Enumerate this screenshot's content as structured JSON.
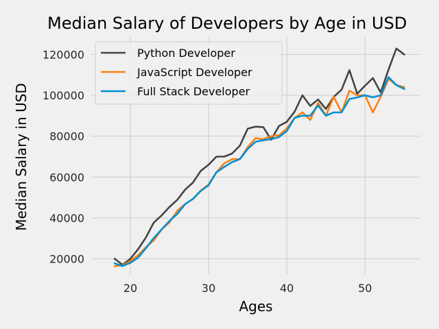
{
  "chart_data": {
    "type": "line",
    "title": "Median Salary of Developers by Age in USD",
    "xlabel": "Ages",
    "ylabel": "Median Salary in USD",
    "xlim": [
      15,
      57
    ],
    "ylim": [
      12500,
      128500
    ],
    "xticks": [
      20,
      30,
      40,
      50
    ],
    "yticks": [
      20000,
      40000,
      60000,
      80000,
      100000,
      120000
    ],
    "grid": true,
    "legend_position": "top-left",
    "x": [
      18,
      19,
      20,
      21,
      22,
      23,
      24,
      25,
      26,
      27,
      28,
      29,
      30,
      31,
      32,
      33,
      34,
      35,
      36,
      37,
      38,
      39,
      40,
      41,
      42,
      43,
      44,
      45,
      46,
      47,
      48,
      49,
      50,
      51,
      52,
      53,
      54,
      55
    ],
    "series": [
      {
        "name": "Python Developer",
        "color": "#444444",
        "values": [
          20046,
          17100,
          20000,
          24744,
          30500,
          37732,
          41247,
          45372,
          48876,
          53850,
          57287,
          63016,
          65998,
          70003,
          70000,
          71496,
          75370,
          83640,
          84666,
          84392,
          78254,
          85000,
          87038,
          91991,
          100000,
          94796,
          97962,
          93302,
          99240,
          102736,
          112285,
          100771,
          104708,
          108423,
          101407,
          112542,
          122870,
          120000
        ]
      },
      {
        "name": "JavaScript Developer",
        "color": "#fc7f0e",
        "values": [
          16446,
          16791,
          18942,
          21780,
          25704,
          29000,
          34372,
          37810,
          43515,
          46823,
          49293,
          53437,
          56373,
          62375,
          66674,
          68745,
          68746,
          74583,
          79000,
          78508,
          79996,
          80403,
          83820,
          88833,
          91660,
          87892,
          96243,
          90000,
          99313,
          91660,
          102264,
          100000,
          100000,
          91660,
          99240,
          108000,
          105000,
          104000
        ]
      },
      {
        "name": "Full Stack Developer",
        "color": "#008fd5",
        "values": [
          17784,
          16500,
          18012,
          20628,
          25206,
          30252,
          34368,
          38496,
          42000,
          46752,
          49320,
          53200,
          56000,
          62316,
          64928,
          67317,
          68748,
          73752,
          77232,
          78000,
          78508,
          79536,
          82488,
          88935,
          90000,
          90056,
          95000,
          90000,
          91633,
          91660,
          98150,
          98964,
          100000,
          98988,
          100000,
          108923,
          105000,
          103117
        ]
      }
    ]
  }
}
